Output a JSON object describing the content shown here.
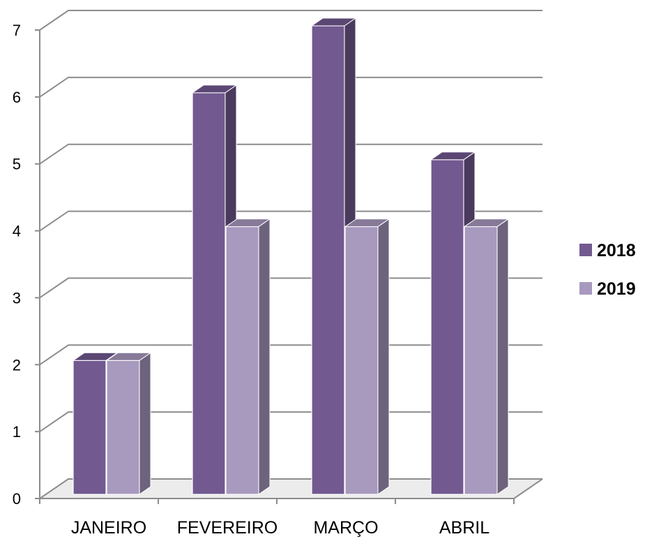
{
  "chart_data": {
    "type": "bar",
    "title": "",
    "xlabel": "",
    "ylabel": "",
    "categories": [
      "JANEIRO",
      "FEVEREIRO",
      "MARÇO",
      "ABRIL"
    ],
    "series": [
      {
        "name": "2018",
        "values": [
          2,
          6,
          7,
          5
        ],
        "color": "#725990"
      },
      {
        "name": "2019",
        "values": [
          2,
          4,
          4,
          4
        ],
        "color": "#a899be"
      }
    ],
    "ylim": [
      0,
      7
    ],
    "yticks": [
      "0",
      "1",
      "2",
      "3",
      "4",
      "5",
      "6",
      "7"
    ],
    "grid": true,
    "legend": "right",
    "style": "3d-clustered-column"
  }
}
